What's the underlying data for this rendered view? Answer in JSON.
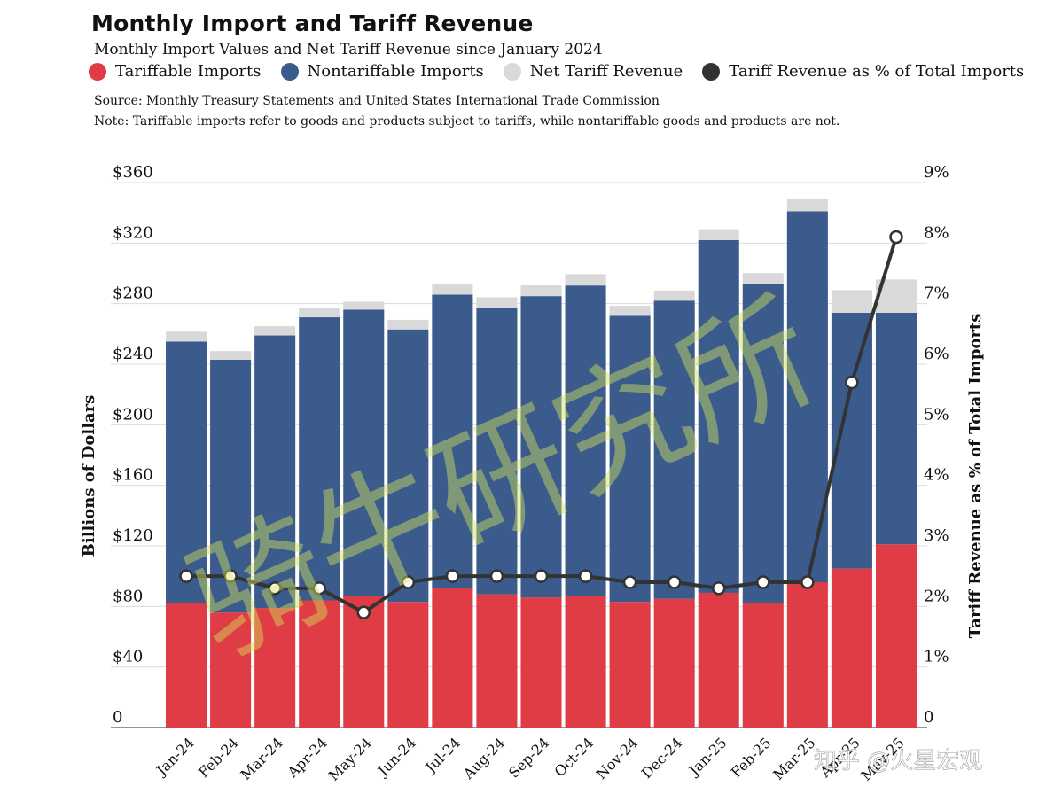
{
  "header": {
    "title": "Monthly Import and Tariff Revenue",
    "subtitle": "Monthly Import Values and Net Tariff Revenue since January 2024",
    "source": "Source: Monthly Treasury Statements and United States International Trade Commission",
    "note": "Note: Tariffable imports refer to goods and products subject to tariffs, while nontariffable goods and products are not."
  },
  "legend": [
    {
      "label": "Tariffable Imports",
      "color": "#e03c45"
    },
    {
      "label": "Nontariffable Imports",
      "color": "#3a5b8c"
    },
    {
      "label": "Net Tariff Revenue",
      "color": "#d9d9d9"
    },
    {
      "label": "Tariff Revenue as % of Total Imports",
      "color": "#333333"
    }
  ],
  "watermarks": {
    "diagonal": "骑牛研究所",
    "corner": "知乎 @火星宏观"
  },
  "chart_data": {
    "type": "bar",
    "stacked": true,
    "categories": [
      "Jan-24",
      "Feb-24",
      "Mar-24",
      "Apr-24",
      "May-24",
      "Jun-24",
      "Jul-24",
      "Aug-24",
      "Sep-24",
      "Oct-24",
      "Nov-24",
      "Dec-24",
      "Jan-25",
      "Feb-25",
      "Mar-25",
      "Apr-25",
      "May-25"
    ],
    "series": [
      {
        "name": "Tariffable Imports",
        "color": "#e03c45",
        "values": [
          82,
          76,
          79,
          84,
          87,
          83,
          92,
          88,
          86,
          87,
          83,
          85,
          89,
          82,
          96,
          105,
          121
        ]
      },
      {
        "name": "Nontariffable Imports",
        "color": "#3a5b8c",
        "values": [
          173,
          167,
          180,
          187,
          189,
          180,
          194,
          189,
          199,
          205,
          189,
          197,
          233,
          211,
          245,
          169,
          153
        ]
      },
      {
        "name": "Net Tariff Revenue",
        "color": "#d9d9d9",
        "values": [
          6.5,
          5.7,
          6.1,
          6.2,
          5.3,
          6.3,
          7.0,
          7.2,
          7.1,
          7.5,
          6.6,
          6.7,
          7.2,
          7.2,
          8.2,
          15.0,
          22.0
        ]
      }
    ],
    "line": {
      "name": "Tariff Revenue as % of Total Imports",
      "color": "#333333",
      "axis": "right",
      "values": [
        2.5,
        2.5,
        2.3,
        2.3,
        1.9,
        2.4,
        2.5,
        2.5,
        2.5,
        2.5,
        2.4,
        2.4,
        2.3,
        2.4,
        2.4,
        5.7,
        8.1
      ]
    },
    "ylabel": "Billions of Dollars",
    "ylabel_right": "Tariff Revenue as % of Total Imports",
    "ylim": [
      0,
      360
    ],
    "ylim_right": [
      0,
      9
    ],
    "yticks": [
      "0",
      "$40",
      "$80",
      "$120",
      "$160",
      "$200",
      "$240",
      "$280",
      "$320",
      "$360"
    ],
    "yticks_right": [
      "0",
      "1%",
      "2%",
      "3%",
      "4%",
      "5%",
      "6%",
      "7%",
      "8%",
      "9%"
    ],
    "grid": true
  }
}
